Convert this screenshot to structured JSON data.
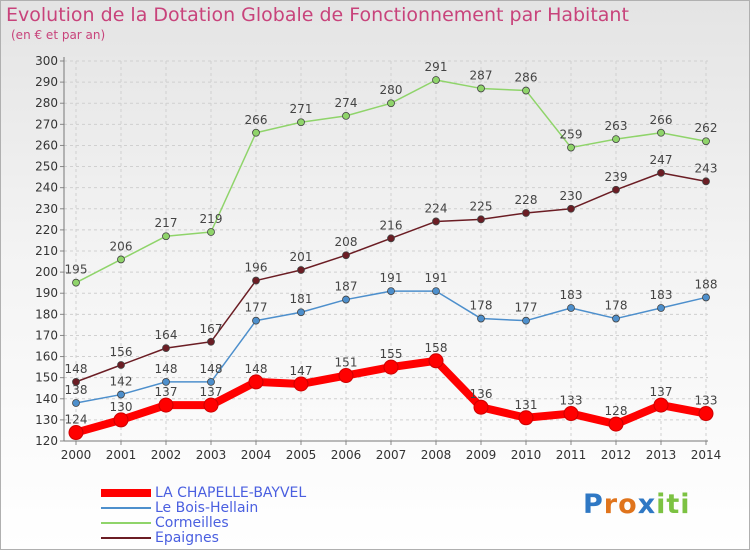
{
  "title": "Evolution de la Dotation Globale de Fonctionnement par Habitant",
  "subtitle": "(en € et par an)",
  "brand": {
    "letters": [
      {
        "ch": "P",
        "color": "#2f78c4"
      },
      {
        "ch": "r",
        "color": "#e0741c"
      },
      {
        "ch": "o",
        "color": "#e0741c"
      },
      {
        "ch": "x",
        "color": "#2f78c4"
      },
      {
        "ch": "i",
        "color": "#7cc242"
      },
      {
        "ch": "t",
        "color": "#7cc242"
      },
      {
        "ch": "i",
        "color": "#7cc242"
      }
    ]
  },
  "chart_data": {
    "type": "line",
    "title": "Evolution de la Dotation Globale de Fonctionnement par Habitant",
    "subtitle": "(en € et par an)",
    "x": [
      "2000",
      "2001",
      "2002",
      "2003",
      "2004",
      "2005",
      "2006",
      "2007",
      "2008",
      "2009",
      "2010",
      "2011",
      "2012",
      "2013",
      "2014"
    ],
    "ylim": [
      120,
      300
    ],
    "yticks": [
      120,
      130,
      140,
      150,
      160,
      170,
      180,
      190,
      200,
      210,
      220,
      230,
      240,
      250,
      260,
      270,
      280,
      290,
      300
    ],
    "grid": true,
    "legend": "bottom-left",
    "series": [
      {
        "name": "LA CHAPELLE-BAYVEL",
        "color": "#ff0000",
        "values": [
          124,
          130,
          137,
          137,
          148,
          147,
          151,
          155,
          158,
          136,
          131,
          133,
          128,
          137,
          133
        ]
      },
      {
        "name": "Le Bois-Hellain",
        "color": "#4d8fcc",
        "values": [
          138,
          142,
          148,
          148,
          177,
          181,
          187,
          191,
          191,
          178,
          177,
          183,
          178,
          183,
          188
        ]
      },
      {
        "name": "Cormeilles",
        "color": "#8fd46a",
        "values": [
          195,
          206,
          217,
          219,
          266,
          271,
          274,
          280,
          291,
          287,
          286,
          259,
          263,
          266,
          262
        ]
      },
      {
        "name": "Epaignes",
        "color": "#6b1d24",
        "values": [
          148,
          156,
          164,
          167,
          196,
          201,
          208,
          216,
          224,
          225,
          228,
          230,
          239,
          247,
          243
        ]
      }
    ]
  }
}
